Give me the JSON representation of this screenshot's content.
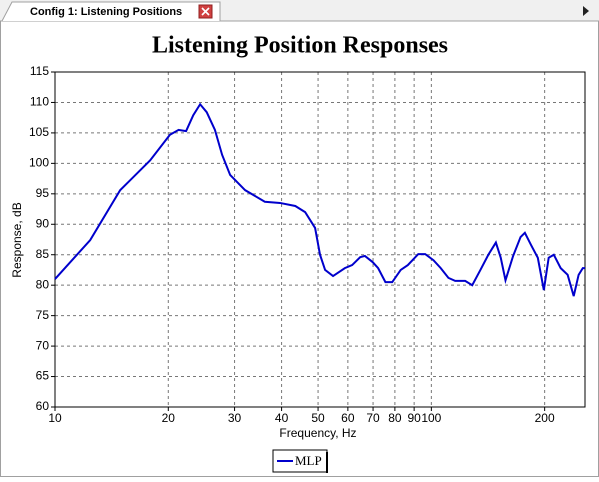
{
  "tab": {
    "title": "Config 1: Listening Positions"
  },
  "chart_data": {
    "type": "line",
    "title": "Listening Position Responses",
    "x_label": "Frequency, Hz",
    "y_label": "Response, dB",
    "log_x": true,
    "grid": true,
    "legend": "bottom",
    "xlim": [
      10,
      256
    ],
    "ylim": [
      60,
      115
    ],
    "xticks": [
      10,
      20,
      30,
      40,
      50,
      60,
      70,
      80,
      90,
      100,
      200
    ],
    "yticks": [
      60,
      65,
      70,
      75,
      80,
      85,
      90,
      95,
      100,
      105,
      110,
      115
    ],
    "x": [
      10,
      12.4,
      14.9,
      17.9,
      20.2,
      21.3,
      22.3,
      23.3,
      24.3,
      25.3,
      26.6,
      27.8,
      29.2,
      32.0,
      36.1,
      39.6,
      43.5,
      46.2,
      49.1,
      50.6,
      52.2,
      54.8,
      58.9,
      61.6,
      64.7,
      66.6,
      69.8,
      72.2,
      75.5,
      78.7,
      82.9,
      86.6,
      92.3,
      96.3,
      101.3,
      105.9,
      111.0,
      115.7,
      123.0,
      128.4,
      135.0,
      141.7,
      148.4,
      152.9,
      157.4,
      164.9,
      172.6,
      177.2,
      184.0,
      191.8,
      199.0,
      205.0,
      211.5,
      220.6,
      230.2,
      238.9,
      246.2,
      252.6,
      256
    ],
    "series": [
      {
        "name": "MLP",
        "color": "#0000cc",
        "values": [
          81.0,
          87.4,
          95.6,
          100.5,
          104.7,
          105.5,
          105.3,
          107.9,
          109.7,
          108.4,
          105.5,
          101.4,
          98.1,
          95.6,
          93.7,
          93.5,
          93.0,
          92.0,
          89.4,
          85.0,
          82.5,
          81.5,
          82.8,
          83.3,
          84.6,
          84.8,
          83.8,
          82.8,
          80.5,
          80.5,
          82.5,
          83.3,
          85.1,
          85.1,
          84.1,
          82.8,
          81.2,
          80.7,
          80.7,
          80.0,
          82.5,
          85.0,
          87.0,
          84.5,
          80.8,
          84.8,
          87.9,
          88.6,
          86.6,
          84.5,
          79.2,
          84.5,
          85.0,
          82.8,
          81.7,
          78.2,
          81.7,
          82.8,
          82.8
        ]
      }
    ]
  }
}
